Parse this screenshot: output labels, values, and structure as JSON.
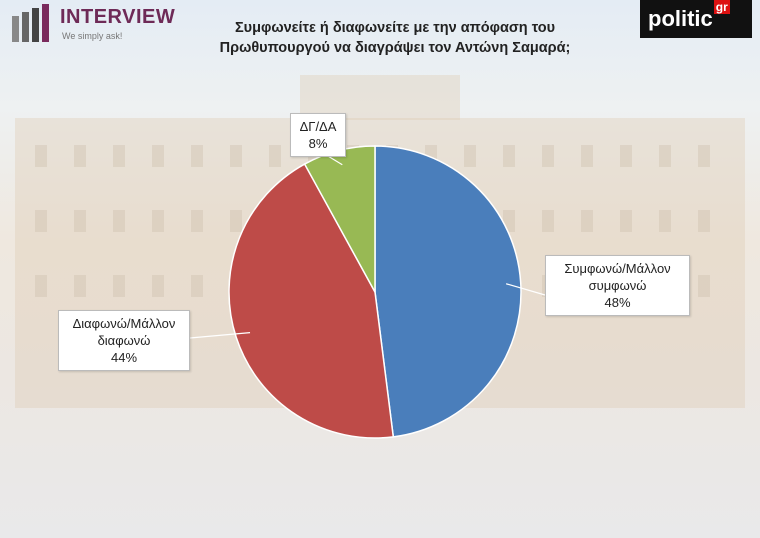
{
  "logos": {
    "left_name": "INTERVIEW",
    "left_slogan": "We simply ask!",
    "right_name": "politic",
    "right_suffix": "gr"
  },
  "chart_data": {
    "type": "pie",
    "title": "Συμφωνείτε ή διαφωνείτε με την απόφαση του Πρωθυπουργού να διαγράψει τον Αντώνη Σαμαρά;",
    "categories": [
      "Συμφωνώ/Μάλλον συμφωνώ",
      "Διαφωνώ/Μάλλον διαφωνώ",
      "ΔΓ/ΔΑ"
    ],
    "values": [
      48,
      44,
      8
    ],
    "value_labels": [
      "48%",
      "44%",
      "8%"
    ],
    "colors": [
      "#4a7ebb",
      "#be4b48",
      "#98b954"
    ]
  }
}
